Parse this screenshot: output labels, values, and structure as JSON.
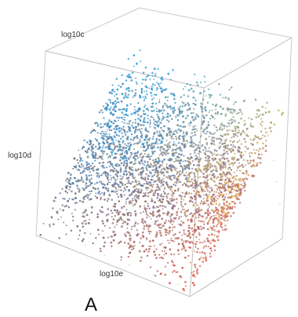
{
  "chart_data": {
    "type": "scatter",
    "title": "",
    "axis_labels": {
      "c": "log10c",
      "d": "log10d",
      "e": "log10e"
    },
    "panel_label": "A",
    "dense_cloud_point_count": 3200,
    "description": "3D cube scatter; color is a blend over c (cyan/blue), d (purple/gray), e (red/orange/yellow)."
  }
}
